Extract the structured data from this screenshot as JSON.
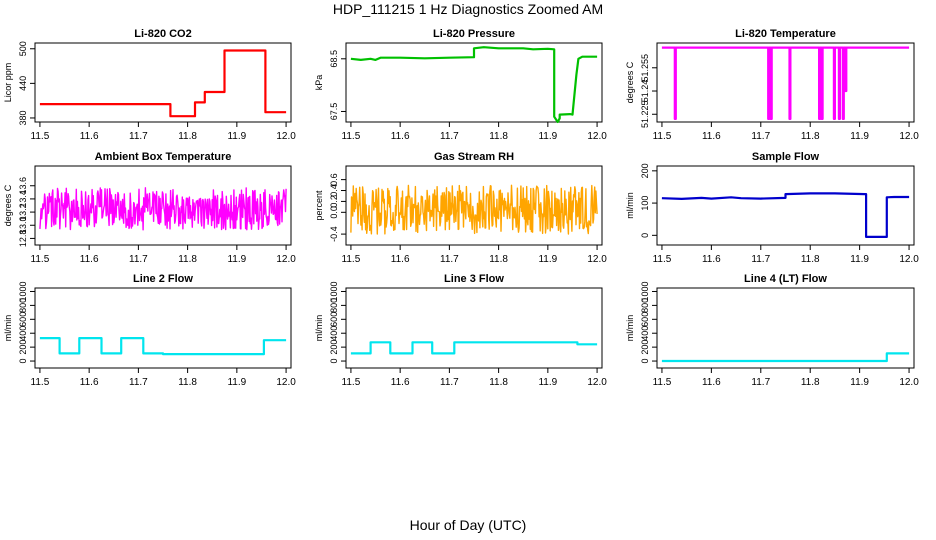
{
  "page": {
    "title": "HDP_111215  1 Hz Diagnostics Zoomed AM",
    "xlabel": "Hour of Day (UTC)"
  },
  "chart_data": [
    {
      "type": "line",
      "title": "Li-820 CO2",
      "xlabel": "",
      "ylabel": "Licor ppm",
      "xlim": [
        11.49,
        12.01
      ],
      "ylim": [
        373,
        510
      ],
      "xticks": [
        11.5,
        11.6,
        11.7,
        11.8,
        11.9,
        12.0
      ],
      "yticks": [
        380,
        440,
        500
      ],
      "color": "#ff0000",
      "noise": 0,
      "series": [
        {
          "x": [
            11.5,
            11.765,
            11.765,
            11.815,
            11.815,
            11.835,
            11.835,
            11.875,
            11.875,
            11.958,
            11.958,
            12.0
          ],
          "y": [
            404,
            404,
            383,
            383,
            407,
            407,
            425,
            425,
            497,
            497,
            390,
            390
          ]
        }
      ]
    },
    {
      "type": "line",
      "title": "Li-820 Pressure",
      "xlabel": "",
      "ylabel": "kPa",
      "xlim": [
        11.49,
        12.01
      ],
      "ylim": [
        67.3,
        68.8
      ],
      "xticks": [
        11.5,
        11.6,
        11.7,
        11.8,
        11.9,
        12.0
      ],
      "yticks": [
        67.5,
        68.5
      ],
      "color": "#00c000",
      "noise": 0,
      "series": [
        {
          "x": [
            11.5,
            11.52,
            11.54,
            11.55,
            11.56,
            11.6,
            11.65,
            11.7,
            11.75,
            11.75,
            11.77,
            11.8,
            11.85,
            11.87,
            11.9,
            11.913,
            11.913,
            11.92,
            11.924,
            11.924,
            11.945,
            11.95,
            11.958,
            11.962,
            11.97,
            12.0
          ],
          "y": [
            68.5,
            68.48,
            68.5,
            68.48,
            68.52,
            68.52,
            68.51,
            68.52,
            68.53,
            68.7,
            68.72,
            68.7,
            68.7,
            68.68,
            68.69,
            68.68,
            67.4,
            67.3,
            67.37,
            67.44,
            67.45,
            67.44,
            68.2,
            68.5,
            68.54,
            68.54
          ]
        }
      ]
    },
    {
      "type": "line",
      "title": "Li-820 Temperature",
      "xlabel": "",
      "ylabel": "degrees C",
      "xlim": [
        11.49,
        12.01
      ],
      "ylim": [
        51.22,
        51.271
      ],
      "xticks": [
        11.5,
        11.6,
        11.7,
        11.8,
        11.9,
        12.0
      ],
      "yticks": [
        51.225,
        51.24,
        51.255
      ],
      "color": "#ff00ff",
      "noise": 0,
      "series": [
        {
          "x": [
            11.5,
            11.526,
            11.526,
            11.528,
            11.528,
            11.715,
            11.715,
            11.717,
            11.717,
            11.72,
            11.72,
            11.722,
            11.722,
            11.758,
            11.758,
            11.76,
            11.76,
            11.818,
            11.818,
            11.82,
            11.82,
            11.823,
            11.823,
            11.825,
            11.825,
            11.848,
            11.848,
            11.85,
            11.85,
            11.858,
            11.858,
            11.86,
            11.86,
            11.866,
            11.866,
            11.868,
            11.868,
            11.871,
            11.871,
            11.873,
            11.873,
            12.0
          ],
          "y": [
            51.268,
            51.268,
            51.222,
            51.222,
            51.268,
            51.268,
            51.222,
            51.222,
            51.268,
            51.268,
            51.222,
            51.222,
            51.268,
            51.268,
            51.222,
            51.222,
            51.268,
            51.268,
            51.222,
            51.222,
            51.268,
            51.268,
            51.222,
            51.222,
            51.268,
            51.268,
            51.222,
            51.222,
            51.268,
            51.268,
            51.222,
            51.222,
            51.268,
            51.268,
            51.222,
            51.222,
            51.268,
            51.268,
            51.24,
            51.24,
            51.268,
            51.268
          ]
        }
      ]
    },
    {
      "type": "line",
      "title": "Ambient Box Temperature",
      "xlabel": "",
      "ylabel": "degrees C",
      "xlim": [
        11.49,
        12.01
      ],
      "ylim": [
        12.7,
        13.9
      ],
      "xticks": [
        11.5,
        11.6,
        11.7,
        11.8,
        11.9,
        12.0
      ],
      "yticks": [
        12.8,
        13.0,
        13.2,
        13.4,
        13.6
      ],
      "color": "#ff00ff",
      "noise": 0.32,
      "series": [
        {
          "x": [
            11.5,
            11.6,
            11.7,
            11.8,
            11.9,
            12.0
          ],
          "y": [
            13.25,
            13.25,
            13.25,
            13.25,
            13.25,
            13.25
          ]
        }
      ]
    },
    {
      "type": "line",
      "title": "Gas Stream RH",
      "xlabel": "",
      "ylabel": "percent",
      "xlim": [
        11.49,
        12.01
      ],
      "ylim": [
        -0.6,
        0.85
      ],
      "xticks": [
        11.5,
        11.6,
        11.7,
        11.8,
        11.9,
        12.0
      ],
      "yticks": [
        -0.4,
        0.0,
        0.2,
        0.4,
        0.6
      ],
      "color": "#ffa500",
      "noise": 0.45,
      "series": [
        {
          "x": [
            11.5,
            11.6,
            11.7,
            11.8,
            11.9,
            12.0
          ],
          "y": [
            0.05,
            0.05,
            0.05,
            0.05,
            0.05,
            0.05
          ]
        }
      ]
    },
    {
      "type": "line",
      "title": "Sample Flow",
      "xlabel": "",
      "ylabel": "ml/min",
      "xlim": [
        11.49,
        12.01
      ],
      "ylim": [
        -30,
        215
      ],
      "xticks": [
        11.5,
        11.6,
        11.7,
        11.8,
        11.9,
        12.0
      ],
      "yticks": [
        0,
        100,
        200
      ],
      "color": "#0000cc",
      "noise": 0,
      "series": [
        {
          "x": [
            11.5,
            11.54,
            11.58,
            11.6,
            11.64,
            11.66,
            11.7,
            11.75,
            11.75,
            11.8,
            11.85,
            11.91,
            11.913,
            11.913,
            11.955,
            11.955,
            11.97,
            12.0
          ],
          "y": [
            115,
            113,
            116,
            114,
            118,
            115,
            114,
            116,
            128,
            130,
            130,
            128,
            128,
            -5,
            -5,
            118,
            119,
            119
          ]
        }
      ]
    },
    {
      "type": "line",
      "title": "Line 2 Flow",
      "xlabel": "",
      "ylabel": "ml/min",
      "xlim": [
        11.49,
        12.01
      ],
      "ylim": [
        -100,
        1050
      ],
      "xticks": [
        11.5,
        11.6,
        11.7,
        11.8,
        11.9,
        12.0
      ],
      "yticks": [
        0,
        200,
        400,
        600,
        800,
        1000
      ],
      "color": "#00e5ee",
      "noise": 0,
      "series": [
        {
          "x": [
            11.5,
            11.54,
            11.54,
            11.58,
            11.58,
            11.625,
            11.625,
            11.665,
            11.665,
            11.71,
            11.71,
            11.75,
            11.75,
            11.955,
            11.955,
            12.0
          ],
          "y": [
            330,
            330,
            110,
            110,
            330,
            330,
            110,
            110,
            330,
            330,
            110,
            110,
            100,
            100,
            300,
            300
          ]
        }
      ]
    },
    {
      "type": "line",
      "title": "Line 3 Flow",
      "xlabel": "",
      "ylabel": "ml/min",
      "xlim": [
        11.49,
        12.01
      ],
      "ylim": [
        -100,
        1050
      ],
      "xticks": [
        11.5,
        11.6,
        11.7,
        11.8,
        11.9,
        12.0
      ],
      "yticks": [
        0,
        200,
        400,
        600,
        800,
        1000
      ],
      "color": "#00e5ee",
      "noise": 0,
      "series": [
        {
          "x": [
            11.5,
            11.54,
            11.54,
            11.58,
            11.58,
            11.625,
            11.625,
            11.665,
            11.665,
            11.71,
            11.71,
            11.96,
            11.96,
            12.0
          ],
          "y": [
            110,
            110,
            270,
            270,
            110,
            110,
            270,
            270,
            110,
            110,
            270,
            270,
            240,
            240
          ]
        }
      ]
    },
    {
      "type": "line",
      "title": "Line 4 (LT) Flow",
      "xlabel": "",
      "ylabel": "ml/min",
      "xlim": [
        11.49,
        12.01
      ],
      "ylim": [
        -100,
        1050
      ],
      "xticks": [
        11.5,
        11.6,
        11.7,
        11.8,
        11.9,
        12.0
      ],
      "yticks": [
        0,
        200,
        400,
        600,
        800,
        1000
      ],
      "color": "#00e5ee",
      "noise": 0,
      "series": [
        {
          "x": [
            11.5,
            11.955,
            11.955,
            12.0
          ],
          "y": [
            0,
            0,
            110,
            110
          ]
        }
      ]
    }
  ]
}
